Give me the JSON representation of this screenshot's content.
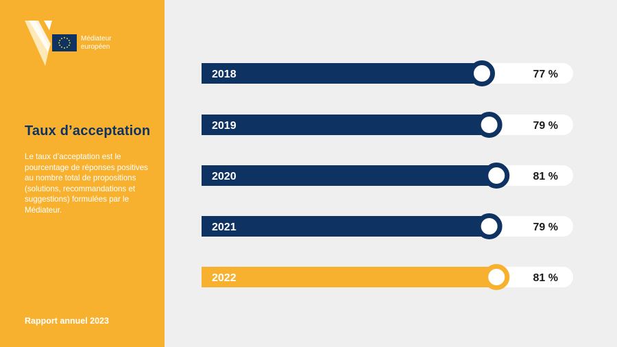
{
  "brand": {
    "line1": "Médiateur",
    "line2": "européen"
  },
  "title": "Taux d’acceptation",
  "description": "Le taux d’acceptation est le pourcentage de réponses positives au nombre total de propositions (solutions, recommandations et suggestions) formulées par le Médiateur.",
  "footer": "Rapport annuel 2023",
  "colors": {
    "navy": "#0e3363",
    "accent": "#f8b12e",
    "track": "#ffffff",
    "background": "#efefef"
  },
  "chart_data": {
    "type": "bar",
    "categories": [
      "2018",
      "2019",
      "2020",
      "2021",
      "2022"
    ],
    "values": [
      77,
      79,
      81,
      79,
      81
    ],
    "value_labels": [
      "77 %",
      "79 %",
      "81 %",
      "79 %",
      "81 %"
    ],
    "highlight": "2022",
    "unit": "%"
  }
}
